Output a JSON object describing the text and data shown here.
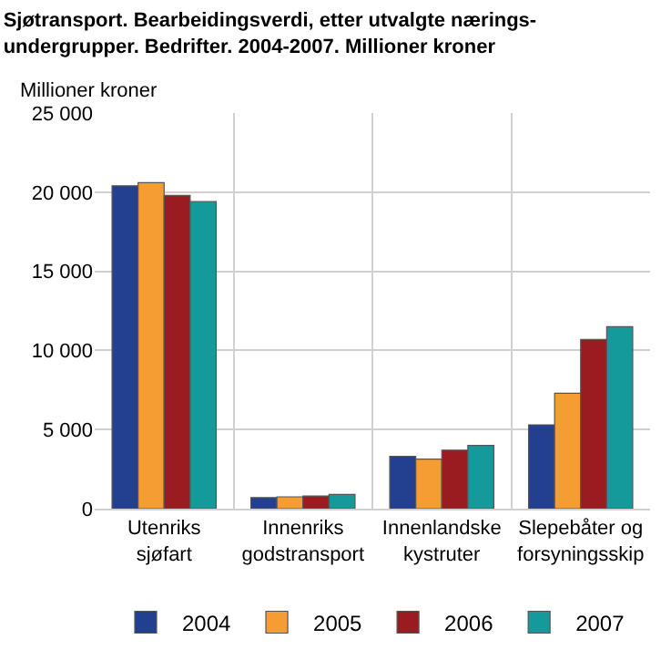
{
  "chart_data": {
    "type": "bar",
    "title": "Sjøtransport. Bearbeidingsverdi, etter utvalgte nærings-\nundergrupper. Bedrifter. 2004-2007. Millioner kroner",
    "ylabel": "Millioner kroner",
    "categories": [
      "Utenriks\nsjøfart",
      "Innenriks\ngodstransport",
      "Innenlandske\nkystruter",
      "Slepebåter og\nforsyningsskip"
    ],
    "series": [
      {
        "name": "2004",
        "color": "#233f8f",
        "values": [
          20400,
          700,
          3300,
          5300
        ]
      },
      {
        "name": "2005",
        "color": "#f59c33",
        "values": [
          20600,
          750,
          3130,
          7300
        ]
      },
      {
        "name": "2006",
        "color": "#9a1c20",
        "values": [
          19800,
          800,
          3700,
          10700
        ]
      },
      {
        "name": "2007",
        "color": "#149a9a",
        "values": [
          19400,
          900,
          4000,
          11500
        ]
      }
    ],
    "ylim": [
      0,
      25000
    ],
    "yticks": [
      {
        "value": 0,
        "label": "0"
      },
      {
        "value": 5000,
        "label": "5 000"
      },
      {
        "value": 10000,
        "label": "10 000"
      },
      {
        "value": 15000,
        "label": "15 000"
      },
      {
        "value": 20000,
        "label": "20 000"
      },
      {
        "value": 25000,
        "label": "25 000"
      }
    ],
    "grid": true,
    "legend": "bottom"
  }
}
